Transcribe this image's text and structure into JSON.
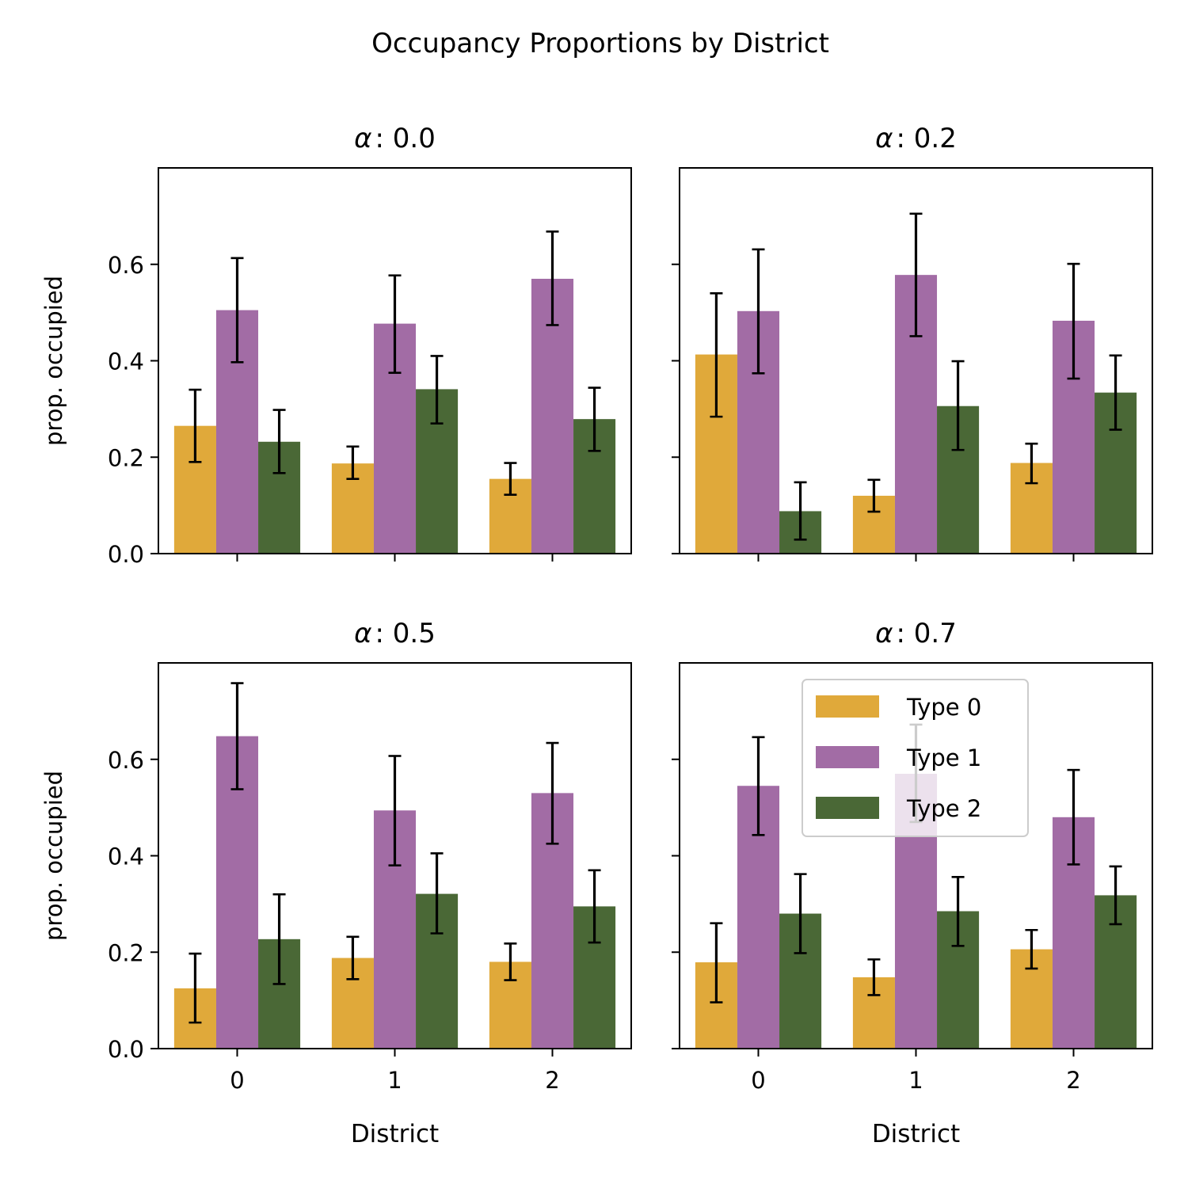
{
  "figure": {
    "title": "Occupancy Proportions by District"
  },
  "colors": {
    "type0": "#e0a93a",
    "type1": "#a26ca5",
    "type2": "#4a6836",
    "error": "#000000"
  },
  "chart_data": [
    {
      "type": "bar",
      "title": "α : 0.0",
      "title_symbol": "α",
      "title_value": ": 0.0",
      "xlabel": "",
      "ylabel": "prop. occupied",
      "categories": [
        "0",
        "1",
        "2"
      ],
      "ylim": [
        0,
        0.8
      ],
      "yticks": [
        "0.0",
        "0.2",
        "0.4",
        "0.6"
      ],
      "series": [
        {
          "name": "Type 0",
          "values": [
            0.265,
            0.187,
            0.155
          ],
          "err_low": [
            0.19,
            0.155,
            0.122
          ],
          "err_high": [
            0.34,
            0.222,
            0.188
          ]
        },
        {
          "name": "Type 1",
          "values": [
            0.505,
            0.477,
            0.57
          ],
          "err_low": [
            0.397,
            0.375,
            0.474
          ],
          "err_high": [
            0.613,
            0.577,
            0.668
          ]
        },
        {
          "name": "Type 2",
          "values": [
            0.232,
            0.341,
            0.279
          ],
          "err_low": [
            0.167,
            0.27,
            0.213
          ],
          "err_high": [
            0.298,
            0.41,
            0.344
          ]
        }
      ]
    },
    {
      "type": "bar",
      "title": "α : 0.2",
      "title_symbol": "α",
      "title_value": ": 0.2",
      "xlabel": "",
      "ylabel": "",
      "categories": [
        "0",
        "1",
        "2"
      ],
      "ylim": [
        0,
        0.8
      ],
      "yticks": [],
      "series": [
        {
          "name": "Type 0",
          "values": [
            0.413,
            0.12,
            0.188
          ],
          "err_low": [
            0.284,
            0.087,
            0.146
          ],
          "err_high": [
            0.54,
            0.153,
            0.228
          ]
        },
        {
          "name": "Type 1",
          "values": [
            0.503,
            0.578,
            0.483
          ],
          "err_low": [
            0.374,
            0.451,
            0.363
          ],
          "err_high": [
            0.631,
            0.705,
            0.601
          ]
        },
        {
          "name": "Type 2",
          "values": [
            0.088,
            0.306,
            0.334
          ],
          "err_low": [
            0.029,
            0.215,
            0.257
          ],
          "err_high": [
            0.148,
            0.399,
            0.411
          ]
        }
      ]
    },
    {
      "type": "bar",
      "title": "α : 0.5",
      "title_symbol": "α",
      "title_value": ": 0.5",
      "xlabel": "District",
      "ylabel": "prop. occupied",
      "categories": [
        "0",
        "1",
        "2"
      ],
      "ylim": [
        0,
        0.8
      ],
      "yticks": [
        "0.0",
        "0.2",
        "0.4",
        "0.6"
      ],
      "series": [
        {
          "name": "Type 0",
          "values": [
            0.125,
            0.188,
            0.18
          ],
          "err_low": [
            0.054,
            0.144,
            0.142
          ],
          "err_high": [
            0.197,
            0.232,
            0.218
          ]
        },
        {
          "name": "Type 1",
          "values": [
            0.648,
            0.494,
            0.53
          ],
          "err_low": [
            0.538,
            0.38,
            0.425
          ],
          "err_high": [
            0.758,
            0.607,
            0.634
          ]
        },
        {
          "name": "Type 2",
          "values": [
            0.227,
            0.321,
            0.295
          ],
          "err_low": [
            0.134,
            0.239,
            0.22
          ],
          "err_high": [
            0.32,
            0.405,
            0.37
          ]
        }
      ]
    },
    {
      "type": "bar",
      "title": "α : 0.7",
      "title_symbol": "α",
      "title_value": ": 0.7",
      "xlabel": "District",
      "ylabel": "",
      "categories": [
        "0",
        "1",
        "2"
      ],
      "ylim": [
        0,
        0.8
      ],
      "yticks": [],
      "legend": "upper-center",
      "series": [
        {
          "name": "Type 0",
          "values": [
            0.179,
            0.148,
            0.206
          ],
          "err_low": [
            0.096,
            0.111,
            0.166
          ],
          "err_high": [
            0.26,
            0.185,
            0.246
          ]
        },
        {
          "name": "Type 1",
          "values": [
            0.545,
            0.57,
            0.48
          ],
          "err_low": [
            0.443,
            0.47,
            0.382
          ],
          "err_high": [
            0.646,
            0.672,
            0.578
          ]
        },
        {
          "name": "Type 2",
          "values": [
            0.28,
            0.285,
            0.318
          ],
          "err_low": [
            0.198,
            0.213,
            0.258
          ],
          "err_high": [
            0.362,
            0.356,
            0.378
          ]
        }
      ]
    }
  ]
}
